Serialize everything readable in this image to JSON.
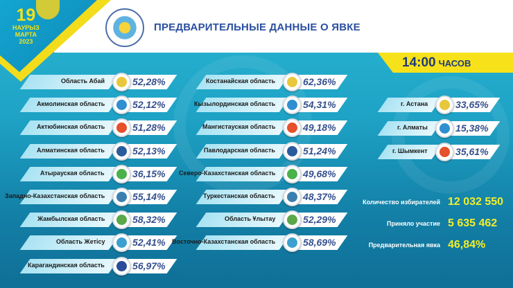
{
  "header": {
    "day": "19",
    "month_kz": "НАУРЫЗ",
    "month_ru": "МАРТА",
    "year": "2023",
    "title": "ПРЕДВАРИТЕЛЬНЫЕ ДАННЫЕ О ЯВКЕ"
  },
  "time": {
    "value": "14:00",
    "unit": "ЧАСОВ"
  },
  "colors": {
    "banner": "#f7e11a",
    "percent_text": "#35508e",
    "stat_value": "#f3ee2a",
    "title": "#2b4fa0"
  },
  "regions_col1": [
    {
      "name": "Область Абай",
      "percent": "52,28%",
      "logo": "abai-logo"
    },
    {
      "name": "Акмолинская область",
      "percent": "52,12%",
      "logo": "akmola-logo"
    },
    {
      "name": "Актюбинская область",
      "percent": "51,28%",
      "logo": "aktobe-logo"
    },
    {
      "name": "Алматинская область",
      "percent": "52,13%",
      "logo": "almaty-region-emblem"
    },
    {
      "name": "Атырауская  область",
      "percent": "36,15%",
      "logo": "atyrau-emblem"
    },
    {
      "name": "Западно-Казахстанская область",
      "percent": "55,14%",
      "logo": "west-kz-emblem"
    },
    {
      "name": "Жамбылская область",
      "percent": "58,32%",
      "logo": "zhambyl-emblem"
    },
    {
      "name": "Область Жетісу",
      "percent": "52,41%",
      "logo": "zhetisu-emblem"
    },
    {
      "name": "Карагандинская область",
      "percent": "56,97%",
      "logo": "karaganda-emblem"
    }
  ],
  "regions_col2": [
    {
      "name": "Костанайская область",
      "percent": "62,36%",
      "logo": "kostanay-emblem"
    },
    {
      "name": "Кызылординская область",
      "percent": "54,31%",
      "logo": "kyzylorda-emblem"
    },
    {
      "name": "Мангистауская область",
      "percent": "49,18%",
      "logo": "mangystau-emblem"
    },
    {
      "name": "Павлодарская область",
      "percent": "51,24%",
      "logo": "pavlodar-emblem"
    },
    {
      "name": "Северо-Казахстанская область",
      "percent": "49,68%",
      "logo": "north-kz-emblem"
    },
    {
      "name": "Туркестанская область",
      "percent": "48,37%",
      "logo": "turkestan-emblem"
    },
    {
      "name": "Область Ұлытау",
      "percent": "52,29%",
      "logo": "ulytau-logo"
    },
    {
      "name": "Восточно-Казахстанская область",
      "percent": "58,69%",
      "logo": "east-kz-emblem"
    }
  ],
  "cities": [
    {
      "name": "г.  Астана",
      "percent": "33,65%",
      "logo": "astana-emblem"
    },
    {
      "name": "г. Алматы",
      "percent": "15,38%",
      "logo": "almaty-emblem"
    },
    {
      "name": "г. Шымкент",
      "percent": "35,61%",
      "logo": "shymkent-logo"
    }
  ],
  "stats": [
    {
      "label": "Количество избирателей",
      "value": "12 032 550"
    },
    {
      "label": "Приняло участие",
      "value": "5 635 462"
    },
    {
      "label": "Предварительная явка",
      "value": "46,84%"
    }
  ]
}
